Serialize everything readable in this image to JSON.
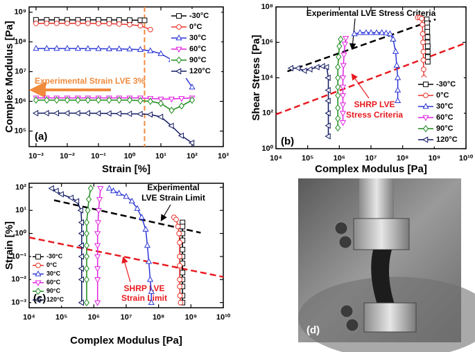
{
  "chart_data": [
    {
      "type": "line",
      "xlabel": "Strain [%]",
      "ylabel": "Complex Modulus [Pa]",
      "panel_label": "(a)",
      "xlog": true,
      "ylog": true,
      "xlim": [
        0.0006,
        1000
      ],
      "ylim": [
        30000,
        1500000000
      ],
      "xticks": [
        {
          "value": 0.001,
          "label": "10⁻³"
        },
        {
          "value": 0.01,
          "label": "10⁻²"
        },
        {
          "value": 0.1,
          "label": "10⁻¹"
        },
        {
          "value": 1,
          "label": "10⁰"
        },
        {
          "value": 10,
          "label": "10¹"
        },
        {
          "value": 100,
          "label": "10²"
        },
        {
          "value": 1000,
          "label": "10³"
        }
      ],
      "yticks": [
        {
          "value": 100000,
          "label": "10⁵"
        },
        {
          "value": 1000000,
          "label": "10⁶"
        },
        {
          "value": 10000000,
          "label": "10⁷"
        },
        {
          "value": 100000000,
          "label": "10⁸"
        },
        {
          "value": 1000000000,
          "label": "10⁹"
        }
      ],
      "legend": "upper right",
      "limit_line": {
        "x": 3,
        "color": "#f08a3c",
        "label": "Experimental Strain LVE  3%"
      },
      "series": [
        {
          "name": "-30°C",
          "color": "#000000",
          "marker": "square",
          "x": [
            0.001,
            0.0022,
            0.0046,
            0.01,
            0.022,
            0.046,
            0.1,
            0.22,
            0.46,
            1,
            2.2,
            3
          ],
          "y": [
            550000000,
            550000000,
            550000000,
            550000000,
            550000000,
            550000000,
            550000000,
            550000000,
            545000000,
            540000000,
            535000000,
            530000000
          ]
        },
        {
          "name": "0°C",
          "color": "#e8332a",
          "marker": "circle",
          "x": [
            0.001,
            0.0022,
            0.0046,
            0.01,
            0.022,
            0.046,
            0.1,
            0.22,
            0.46,
            1,
            2.2,
            4.6
          ],
          "y": [
            420000000,
            420000000,
            420000000,
            420000000,
            420000000,
            420000000,
            415000000,
            410000000,
            400000000,
            380000000,
            350000000,
            260000000
          ]
        },
        {
          "name": "30°C",
          "color": "#2a35d6",
          "marker": "triangle-up",
          "x": [
            0.001,
            0.0022,
            0.0046,
            0.01,
            0.022,
            0.046,
            0.1,
            0.22,
            0.46,
            1,
            2.2,
            4.6,
            10,
            22,
            46,
            100
          ],
          "y": [
            60000000,
            60000000,
            60000000,
            60000000,
            60000000,
            59000000,
            59000000,
            58000000,
            58000000,
            57000000,
            55000000,
            50000000,
            40000000,
            25000000,
            10000000,
            3000000
          ]
        },
        {
          "name": "60°C",
          "color": "#e020e0",
          "marker": "triangle-down",
          "x": [
            0.001,
            0.0022,
            0.0046,
            0.01,
            0.022,
            0.046,
            0.1,
            0.22,
            0.46,
            1,
            2.2,
            4.6,
            10,
            22,
            46,
            100
          ],
          "y": [
            1300000,
            1300000,
            1300000,
            1300000,
            1300000,
            1300000,
            1300000,
            1300000,
            1300000,
            1300000,
            1300000,
            1250000,
            1200000,
            1200000,
            1250000,
            1300000
          ]
        },
        {
          "name": "90°C",
          "color": "#1a8a1a",
          "marker": "diamond",
          "x": [
            0.001,
            0.0022,
            0.0046,
            0.01,
            0.022,
            0.046,
            0.1,
            0.22,
            0.46,
            1,
            2.2,
            4.6,
            10,
            22,
            46,
            100
          ],
          "y": [
            1100000,
            1100000,
            1100000,
            1100000,
            1100000,
            1100000,
            1100000,
            1100000,
            1100000,
            1100000,
            1050000,
            1000000,
            850000,
            500000,
            700000,
            1100000
          ]
        },
        {
          "name": "120°C",
          "color": "#101860",
          "marker": "triangle-left",
          "x": [
            0.001,
            0.0022,
            0.0046,
            0.01,
            0.022,
            0.046,
            0.1,
            0.22,
            0.46,
            1,
            2.2,
            4.6,
            10,
            22,
            46,
            100
          ],
          "y": [
            400000,
            400000,
            400000,
            400000,
            400000,
            400000,
            395000,
            390000,
            385000,
            380000,
            375000,
            360000,
            300000,
            150000,
            70000,
            40000
          ]
        }
      ]
    },
    {
      "type": "line",
      "xlabel": "Complex Modulus [Pa]",
      "ylabel": "Shear Stress [Pa]",
      "panel_label": "(b)",
      "xlog": true,
      "ylog": true,
      "xlim": [
        10000,
        10000000000
      ],
      "ylim": [
        1,
        100000000
      ],
      "xticks": [
        {
          "value": 10000,
          "label": "10⁴"
        },
        {
          "value": 100000,
          "label": "10⁵"
        },
        {
          "value": 1000000,
          "label": "10⁶"
        },
        {
          "value": 10000000,
          "label": "10⁷"
        },
        {
          "value": 100000000,
          "label": "10⁸"
        },
        {
          "value": 1000000000,
          "label": "10⁹"
        },
        {
          "value": 10000000000,
          "label": "10¹⁰"
        }
      ],
      "yticks": [
        {
          "value": 1,
          "label": "10⁰"
        },
        {
          "value": 100,
          "label": "10²"
        },
        {
          "value": 10000,
          "label": "10⁴"
        },
        {
          "value": 1000000,
          "label": "10⁶"
        },
        {
          "value": 100000000,
          "label": "10⁸"
        }
      ],
      "legend": "lower right",
      "reference_lines": [
        {
          "label": [
            "Experimental LVE Stress Criteria"
          ],
          "color": "#000000",
          "x": [
            23000,
            1100000000
          ],
          "y": [
            23000,
            20000000
          ]
        },
        {
          "label": [
            "SHRP LVE",
            "Stress Criteria"
          ],
          "color": "#e8191e",
          "x": [
            10000,
            10000000000
          ],
          "y": [
            86,
            930000
          ]
        }
      ],
      "series": [
        {
          "name": "-30°C",
          "color": "#000000",
          "marker": "square",
          "x": [
            580000000,
            590000000,
            600000000,
            600000000,
            610000000,
            610000000,
            620000000,
            620000000,
            620000000,
            620000000
          ],
          "y": [
            20000000,
            12000000,
            7000000,
            4000000,
            2000000,
            1000000,
            600000,
            300000,
            150000,
            80000
          ]
        },
        {
          "name": "0°C",
          "color": "#e8332a",
          "marker": "circle",
          "x": [
            300000000,
            350000000,
            400000000,
            420000000,
            430000000,
            440000000,
            450000000,
            450000000,
            460000000,
            470000000,
            480000000,
            500000000
          ],
          "y": [
            25000000,
            25000000,
            22000000,
            10000000,
            3000000,
            1000000,
            300000,
            100000,
            30000,
            10000,
            3000,
            1000
          ]
        },
        {
          "name": "30°C",
          "color": "#2a35d6",
          "marker": "triangle-up",
          "x": [
            3000000,
            4500000,
            7000000,
            10000000,
            15000000,
            22000000,
            30000000,
            40000000,
            50000000,
            60000000,
            65000000,
            70000000,
            70000000,
            70000000
          ],
          "y": [
            3000000,
            3500000,
            3500000,
            3500000,
            3500000,
            3500000,
            3300000,
            3000000,
            1500000,
            300000,
            50000,
            10000,
            2000,
            500
          ]
        },
        {
          "name": "60°C",
          "color": "#e020e0",
          "marker": "triangle-down",
          "x": [
            1600000,
            1500000,
            1400000,
            1350000,
            1300000,
            1300000,
            1300000,
            1300000,
            1300000,
            1300000
          ],
          "y": [
            1700000,
            800000,
            200000,
            50000,
            10000,
            3000,
            1000,
            300,
            100,
            30
          ]
        },
        {
          "name": "90°C",
          "color": "#1a8a1a",
          "marker": "diamond",
          "x": [
            1100000,
            1000000,
            950000,
            900000,
            900000,
            900000,
            900000,
            900000,
            900000,
            900000
          ],
          "y": [
            1500000,
            600000,
            150000,
            40000,
            10000,
            3000,
            1000,
            200,
            50,
            15
          ]
        },
        {
          "name": "120°C",
          "color": "#101860",
          "marker": "triangle-left",
          "x": [
            30000,
            50000,
            80000,
            120000,
            200000,
            300000,
            400000,
            450000,
            450000,
            450000,
            450000,
            450000,
            450000
          ],
          "y": [
            35000,
            35000,
            25000,
            30000,
            40000,
            45000,
            40000,
            10000,
            2000,
            500,
            100,
            20,
            5
          ]
        }
      ]
    },
    {
      "type": "line",
      "xlabel": "Complex Modulus [Pa]",
      "ylabel": "Strain [%]",
      "panel_label": "(c)",
      "xlog": true,
      "ylog": true,
      "xlim": [
        10000,
        10000000000
      ],
      "ylim": [
        0.0006,
        150
      ],
      "xticks": [
        {
          "value": 10000,
          "label": "10⁴"
        },
        {
          "value": 100000,
          "label": "10⁵"
        },
        {
          "value": 1000000,
          "label": "10⁶"
        },
        {
          "value": 10000000,
          "label": "10⁷"
        },
        {
          "value": 100000000,
          "label": "10⁸"
        },
        {
          "value": 1000000000,
          "label": "10⁹"
        },
        {
          "value": 10000000000,
          "label": "10¹⁰"
        }
      ],
      "yticks": [
        {
          "value": 0.001,
          "label": "10⁻³"
        },
        {
          "value": 0.01,
          "label": "10⁻²"
        },
        {
          "value": 0.1,
          "label": "10⁻¹"
        },
        {
          "value": 1,
          "label": "10⁰"
        },
        {
          "value": 10,
          "label": "10¹"
        },
        {
          "value": 100,
          "label": "10²"
        }
      ],
      "legend": "lower left",
      "reference_lines": [
        {
          "label": [
            "Experimental",
            "LVE Strain Limit"
          ],
          "color": "#000000",
          "x": [
            59000,
            2000000000
          ],
          "y": [
            27.6,
            1.07
          ]
        },
        {
          "label": [
            "SHRP LVE",
            "Strain Limit"
          ],
          "color": "#e8191e",
          "x": [
            10000,
            10000000000
          ],
          "y": [
            0.67,
            0.013
          ]
        }
      ],
      "series": [
        {
          "name": "-30°C",
          "color": "#000000",
          "marker": "square",
          "x": [
            550000000,
            550000000,
            550000000,
            550000000,
            550000000,
            550000000,
            550000000,
            550000000,
            550000000,
            550000000,
            550000000,
            550000000
          ],
          "y": [
            3,
            2,
            1,
            0.5,
            0.2,
            0.1,
            0.05,
            0.02,
            0.01,
            0.005,
            0.002,
            0.001
          ]
        },
        {
          "name": "0°C",
          "color": "#e8332a",
          "marker": "circle",
          "x": [
            300000000,
            350000000,
            400000000,
            430000000,
            450000000,
            450000000,
            450000000,
            450000000,
            450000000,
            460000000,
            480000000
          ],
          "y": [
            5,
            4,
            2,
            1,
            0.4,
            0.1,
            0.04,
            0.01,
            0.005,
            0.002,
            0.001
          ]
        },
        {
          "name": "30°C",
          "color": "#2a35d6",
          "marker": "triangle-up",
          "x": [
            3000000,
            4000000,
            6000000,
            10000000,
            15000000,
            22000000,
            30000000,
            40000000,
            45000000,
            50000000,
            55000000,
            60000000,
            60000000
          ],
          "y": [
            90,
            70,
            55,
            40,
            25,
            12,
            5,
            1.5,
            0.3,
            0.06,
            0.01,
            0.003,
            0.001
          ]
        },
        {
          "name": "60°C",
          "color": "#e020e0",
          "marker": "triangle-down",
          "x": [
            1600000,
            1500000,
            1400000,
            1350000,
            1300000,
            1300000,
            1300000,
            1300000,
            1300000,
            1300000
          ],
          "y": [
            90,
            30,
            10,
            3,
            1,
            0.3,
            0.1,
            0.03,
            0.01,
            0.001
          ]
        },
        {
          "name": "90°C",
          "color": "#1a8a1a",
          "marker": "diamond",
          "x": [
            800000,
            700000,
            650000,
            600000,
            600000,
            600000,
            600000,
            600000,
            600000,
            600000
          ],
          "y": [
            90,
            30,
            10,
            3,
            1,
            0.3,
            0.1,
            0.03,
            0.01,
            0.001
          ]
        },
        {
          "name": "120°C",
          "color": "#101860",
          "marker": "triangle-left",
          "x": [
            50000,
            70000,
            100000,
            200000,
            300000,
            400000,
            420000,
            420000,
            420000,
            420000,
            420000,
            420000,
            420000
          ],
          "y": [
            90,
            70,
            50,
            35,
            25,
            10,
            3,
            1,
            0.3,
            0.1,
            0.03,
            0.01,
            0.001
          ]
        }
      ]
    },
    {
      "type": "photo",
      "panel_label": "(d)"
    }
  ]
}
